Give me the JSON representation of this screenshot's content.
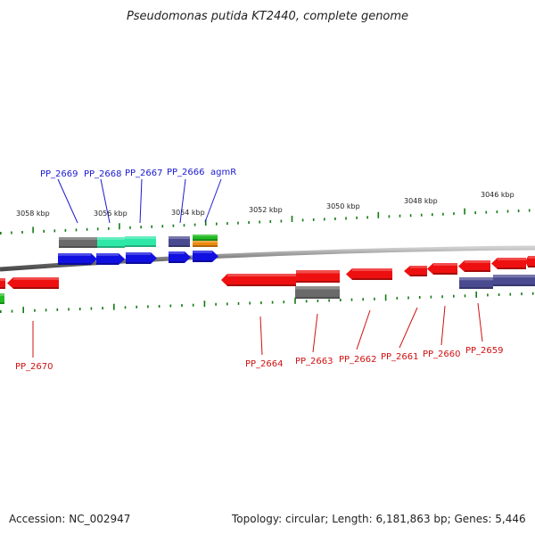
{
  "title": "Pseudomonas putida KT2440, complete genome",
  "footer": {
    "accession": "Accession: NC_002947",
    "topology": "Topology: circular; Length: 6,181,863 bp; Genes: 5,446"
  },
  "colors": {
    "forward_gene": "#1010e0",
    "reverse_gene": "#ee1010",
    "grey_feature": "#6a6a6a",
    "teal_feature": "#2ee8a8",
    "purple_feature": "#4a4a90",
    "green_feature": "#22bb22",
    "orange_feature": "#ee8a10",
    "tick": "#137a13",
    "label_blue": "#1a1ad0",
    "label_red": "#d01010",
    "backbone": "#8a8a8a"
  },
  "scale_labels": [
    "3058 kbp",
    "3056 kbp",
    "3054 kbp",
    "3052 kbp",
    "3050 kbp",
    "3048 kbp",
    "3046 kbp"
  ],
  "top_genes": [
    "PP_2669",
    "PP_2668",
    "PP_2667",
    "PP_2666",
    "agmR"
  ],
  "bottom_genes": [
    "PP_2670",
    "PP_2664",
    "PP_2663",
    "PP_2662",
    "PP_2661",
    "PP_2660",
    "PP_2659"
  ]
}
